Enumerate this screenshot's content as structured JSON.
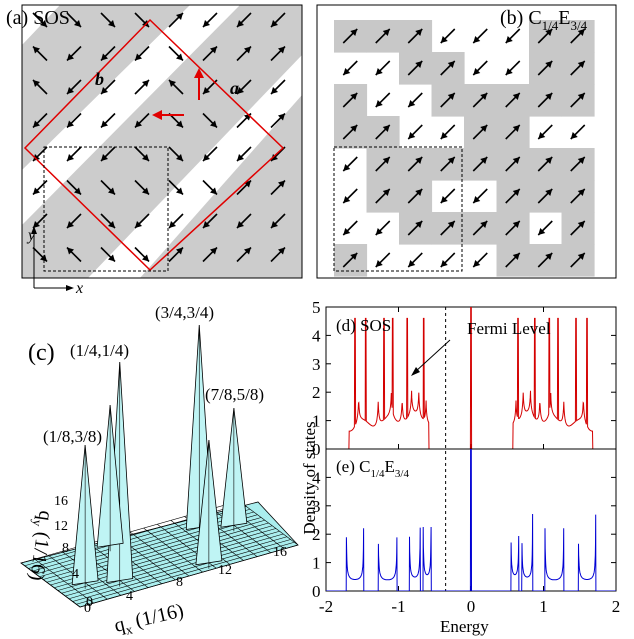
{
  "panel_a": {
    "label": "(a) SOS",
    "vector_a": "a",
    "vector_b": "b",
    "axis_x": "x",
    "axis_y": "y",
    "arrows": [
      [
        "se",
        "se",
        "se",
        "se",
        "ne",
        "sw",
        "sw",
        "sw"
      ],
      [
        "nw",
        "sw",
        "sw",
        "sw",
        "se",
        "ne",
        "ne",
        "ne"
      ],
      [
        "nw",
        "sw",
        "sw",
        "ne",
        "nw",
        "sw",
        "sw",
        "sw"
      ],
      [
        "sw",
        "sw",
        "sw",
        "sw",
        "se",
        "se",
        "ne",
        "ne"
      ],
      [
        "sw",
        "sw",
        "sw",
        "se",
        "se",
        "sw",
        "sw",
        "sw"
      ],
      [
        "sw",
        "se",
        "se",
        "se",
        "se",
        "se",
        "ne",
        "ne"
      ],
      [
        "sw",
        "sw",
        "se",
        "sw",
        "sw",
        "sw",
        "sw",
        "sw"
      ],
      [
        "se",
        "nw",
        "se",
        "se",
        "ne",
        "ne",
        "ne",
        "ne"
      ]
    ]
  },
  "panel_b": {
    "label_main": "(b) C",
    "label_sub1": "1/4",
    "label_mid": "E",
    "label_sub2": "3/4",
    "gray_cells": [
      [
        1,
        1,
        1,
        0,
        0,
        0,
        1,
        1
      ],
      [
        0,
        0,
        1,
        1,
        0,
        0,
        1,
        1
      ],
      [
        1,
        0,
        0,
        1,
        1,
        1,
        1,
        1
      ],
      [
        1,
        1,
        0,
        0,
        1,
        1,
        0,
        0
      ],
      [
        0,
        1,
        1,
        1,
        1,
        1,
        1,
        1
      ],
      [
        0,
        1,
        1,
        0,
        0,
        1,
        1,
        1
      ],
      [
        0,
        0,
        1,
        1,
        1,
        1,
        0,
        1
      ],
      [
        1,
        0,
        0,
        0,
        0,
        1,
        1,
        1
      ]
    ],
    "arrows": [
      [
        "ne",
        "ne",
        "ne",
        "sw",
        "sw",
        "sw",
        "ne",
        "ne"
      ],
      [
        "sw",
        "sw",
        "ne",
        "ne",
        "sw",
        "sw",
        "ne",
        "ne"
      ],
      [
        "ne",
        "sw",
        "sw",
        "ne",
        "ne",
        "ne",
        "ne",
        "ne"
      ],
      [
        "ne",
        "ne",
        "sw",
        "sw",
        "ne",
        "ne",
        "sw",
        "sw"
      ],
      [
        "sw",
        "ne",
        "ne",
        "ne",
        "ne",
        "ne",
        "ne",
        "ne"
      ],
      [
        "sw",
        "ne",
        "ne",
        "sw",
        "sw",
        "ne",
        "ne",
        "ne"
      ],
      [
        "sw",
        "sw",
        "ne",
        "ne",
        "ne",
        "ne",
        "sw",
        "ne"
      ],
      [
        "ne",
        "sw",
        "sw",
        "sw",
        "sw",
        "ne",
        "ne",
        "ne"
      ]
    ]
  },
  "panel_c": {
    "label": "(c)",
    "peak_labels": [
      "(3/4,3/4)",
      "(1/4,1/4)",
      "(7/8,5/8)",
      "(1/8,3/8)"
    ],
    "qx_label": "q",
    "qx_sub": "x",
    "qx_unit": " (1/16)",
    "qy_label": "q",
    "qy_sub": "y",
    "qy_unit": " (1/16)",
    "qx_ticks": [
      "0",
      "4",
      "8",
      "12",
      "16"
    ],
    "qy_ticks": [
      "0",
      "4",
      "8",
      "12",
      "16"
    ]
  },
  "chart_data": [
    {
      "type": "line",
      "title": "(d) SOS",
      "annotation": "Fermi Level",
      "ylabel": "Density of states",
      "ylim": [
        0,
        5
      ],
      "yticks": [
        "0",
        "1",
        "2",
        "3",
        "4",
        "5"
      ],
      "xlim": [
        -2,
        2
      ],
      "color": "#d40000",
      "fermi_level": -0.35
    },
    {
      "type": "line",
      "title": "(e) C",
      "title_sub1": "1/4",
      "title_mid": "E",
      "title_sub2": "3/4",
      "xlabel": "Energy",
      "ylim": [
        0,
        5
      ],
      "yticks": [
        "0",
        "1",
        "2",
        "3",
        "4"
      ],
      "xlim": [
        -2,
        2
      ],
      "xticks": [
        "-2",
        "-1",
        "0",
        "1",
        "2"
      ],
      "color": "#0000d4"
    }
  ]
}
